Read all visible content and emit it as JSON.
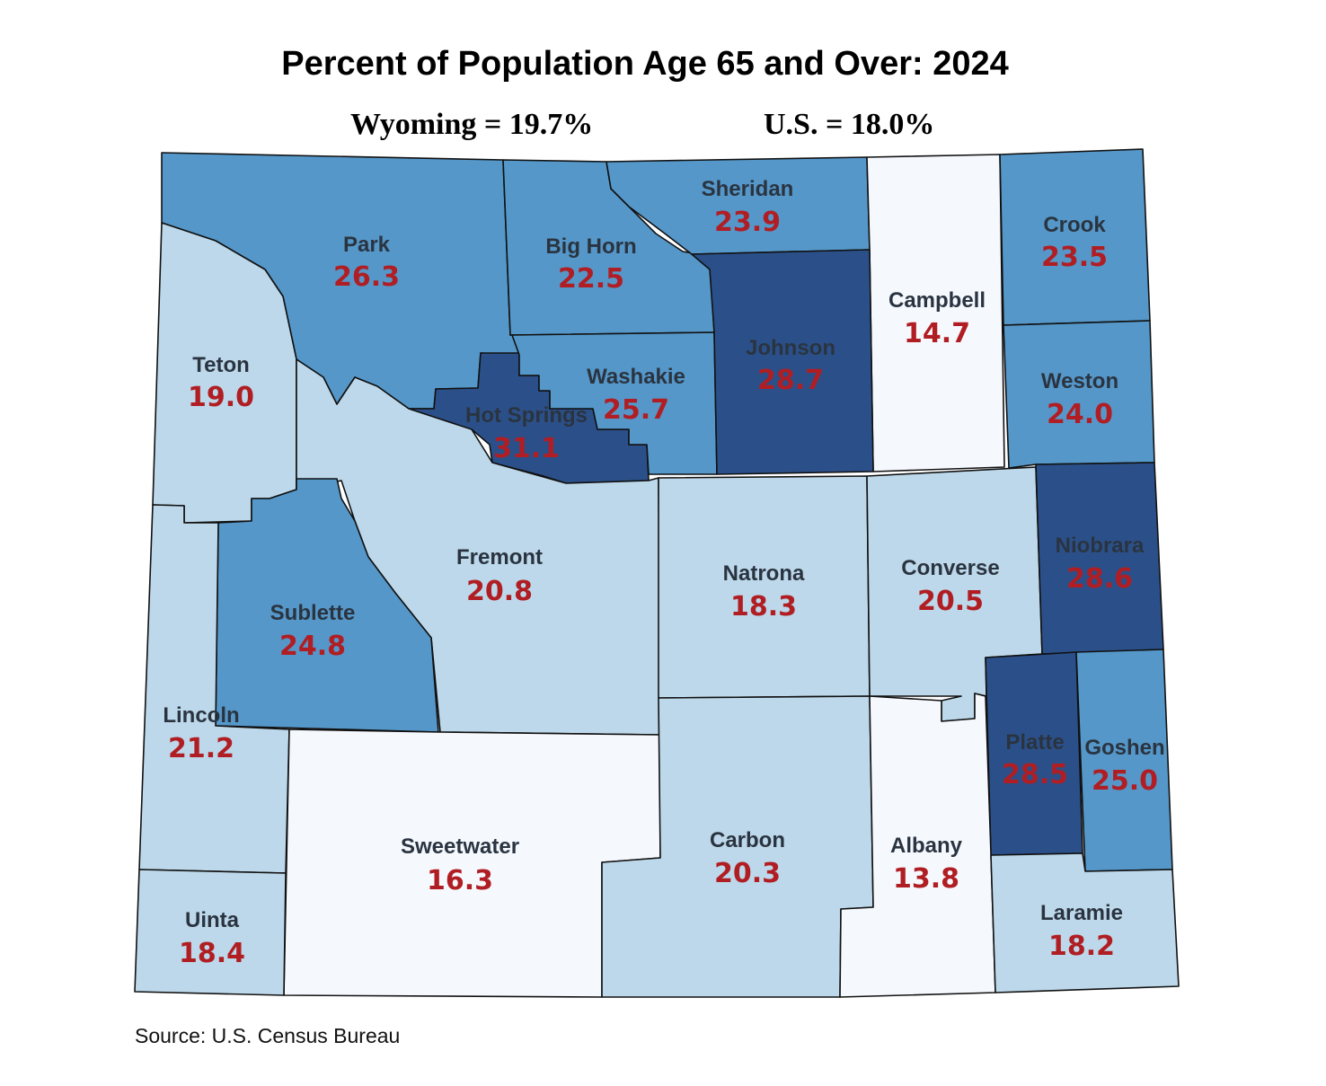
{
  "title": "Percent of Population Age 65 and Over: 2024",
  "wyoming_stat": "Wyoming = 19.7%",
  "us_stat": "U.S. = 18.0%",
  "source": "Source: U.S. Census Bureau",
  "palette": {
    "lowest": "#f5f9fe",
    "low": "#bdd8ea",
    "mid": "#5597c9",
    "high": "#2b5089",
    "border": "#111111",
    "value_text": "#b01e23",
    "name_text": "#2a3440"
  },
  "counties": [
    {
      "name": "Park",
      "value": "26.3",
      "class": "mid"
    },
    {
      "name": "Big Horn",
      "value": "22.5",
      "class": "mid"
    },
    {
      "name": "Sheridan",
      "value": "23.9",
      "class": "mid"
    },
    {
      "name": "Campbell",
      "value": "14.7",
      "class": "lowest"
    },
    {
      "name": "Crook",
      "value": "23.5",
      "class": "mid"
    },
    {
      "name": "Teton",
      "value": "19.0",
      "class": "low"
    },
    {
      "name": "Hot Springs",
      "value": "31.1",
      "class": "high"
    },
    {
      "name": "Washakie",
      "value": "25.7",
      "class": "mid"
    },
    {
      "name": "Johnson",
      "value": "28.7",
      "class": "high"
    },
    {
      "name": "Weston",
      "value": "24.0",
      "class": "mid"
    },
    {
      "name": "Fremont",
      "value": "20.8",
      "class": "low"
    },
    {
      "name": "Sublette",
      "value": "24.8",
      "class": "mid"
    },
    {
      "name": "Natrona",
      "value": "18.3",
      "class": "low"
    },
    {
      "name": "Converse",
      "value": "20.5",
      "class": "low"
    },
    {
      "name": "Niobrara",
      "value": "28.6",
      "class": "high"
    },
    {
      "name": "Lincoln",
      "value": "21.2",
      "class": "low"
    },
    {
      "name": "Platte",
      "value": "28.5",
      "class": "high"
    },
    {
      "name": "Goshen",
      "value": "25.0",
      "class": "mid"
    },
    {
      "name": "Sweetwater",
      "value": "16.3",
      "class": "lowest"
    },
    {
      "name": "Carbon",
      "value": "20.3",
      "class": "low"
    },
    {
      "name": "Albany",
      "value": "13.8",
      "class": "lowest"
    },
    {
      "name": "Uinta",
      "value": "18.4",
      "class": "low"
    },
    {
      "name": "Laramie",
      "value": "18.2",
      "class": "low"
    }
  ]
}
